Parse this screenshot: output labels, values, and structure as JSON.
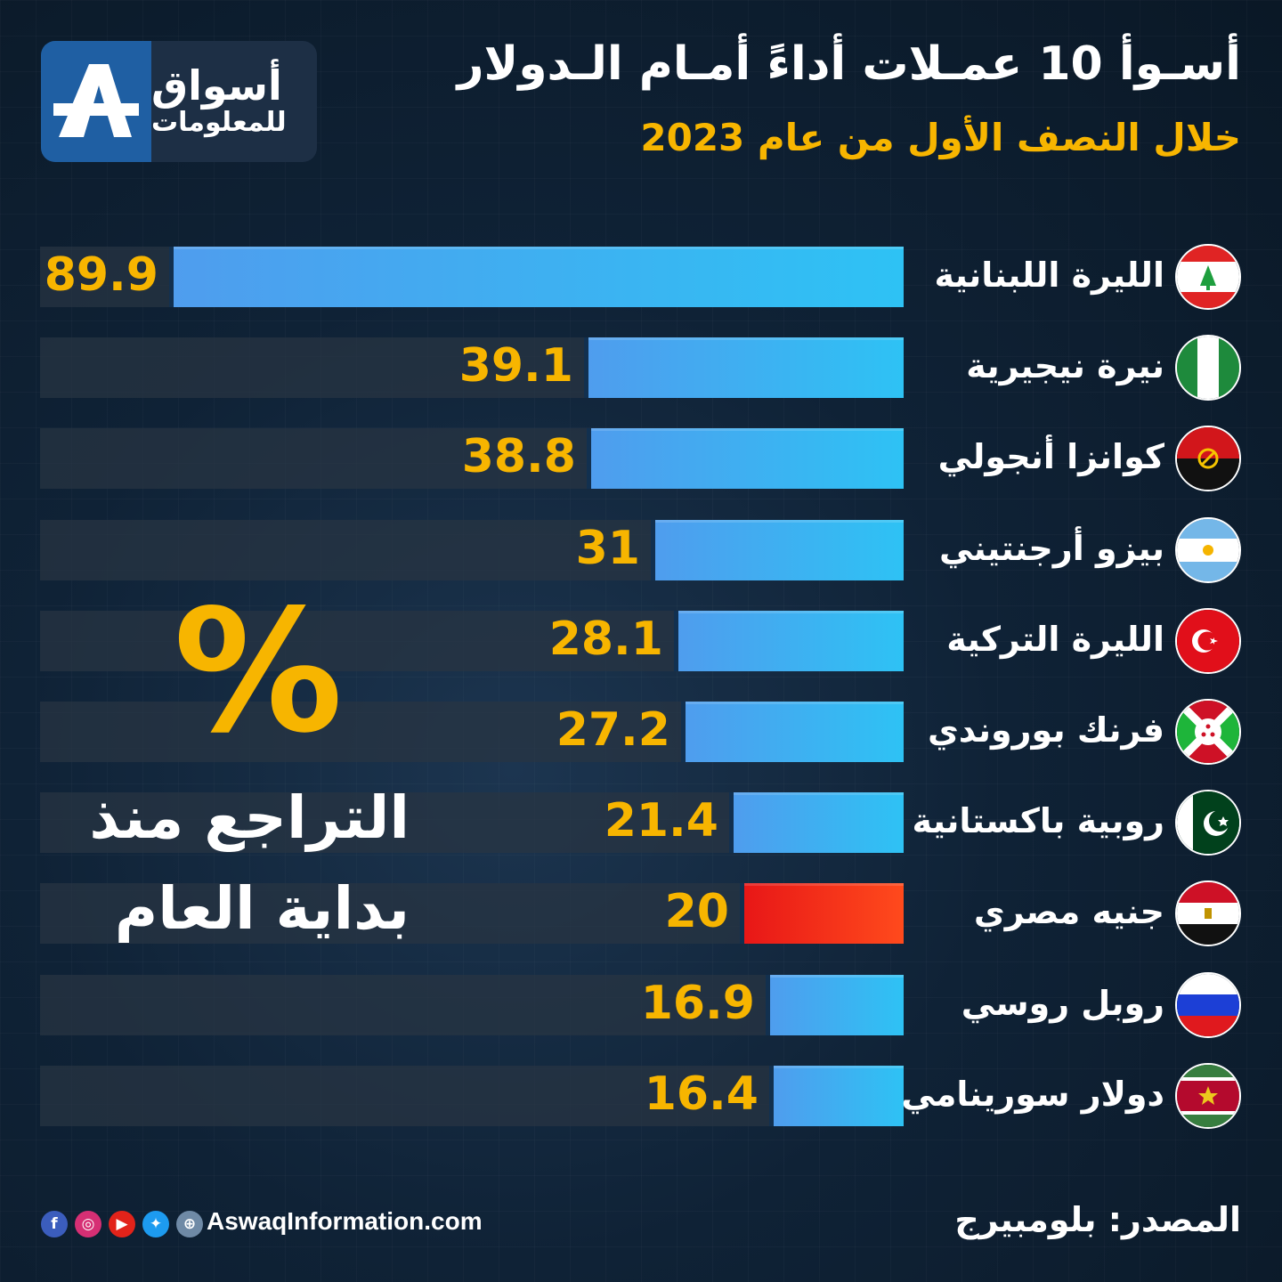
{
  "header": {
    "logo_name": "أسواق",
    "logo_sub": "للمعلومات",
    "title": "أسـوأ 10 عمـلات أداءً أمـام الـدولار",
    "subtitle": "خلال النصف الأول من عام 2023"
  },
  "chart_data": {
    "type": "bar",
    "orientation": "horizontal",
    "title": "أسـوأ 10 عمـلات أداءً أمـام الـدولار",
    "subtitle": "خلال النصف الأول من عام 2023",
    "categories": [
      "الليرة اللبنانية",
      "نيرة نيجيرية",
      "كوانزا أنجولي",
      "بيزو أرجنتيني",
      "الليرة التركية",
      "فرنك بوروندي",
      "روبية باكستانية",
      "جنيه مصري",
      "روبل روسي",
      "دولار سورينامي"
    ],
    "values": [
      89.9,
      39.1,
      38.8,
      31,
      28.1,
      27.2,
      21.4,
      20,
      16.9,
      16.4
    ],
    "value_labels": [
      "89.9",
      "39.1",
      "38.8",
      "31",
      "28.1",
      "27.2",
      "21.4",
      "20",
      "16.9",
      "16.4"
    ],
    "flags": [
      "lebanon-flag-icon",
      "nigeria-flag-icon",
      "angola-flag-icon",
      "argentina-flag-icon",
      "turkey-flag-icon",
      "burundi-flag-icon",
      "pakistan-flag-icon",
      "egypt-flag-icon",
      "russia-flag-icon",
      "suriname-flag-icon"
    ],
    "highlight_index": 7,
    "bar_color": "#3fb2f2",
    "highlight_color": "#f02a1a",
    "value_color": "#f7b500",
    "xlim": [
      0,
      89.9
    ]
  },
  "annotation": {
    "symbol": "%",
    "line1": "التراجع منذ",
    "line2": "بداية العام"
  },
  "footer": {
    "social_icons": [
      {
        "name": "facebook-icon",
        "glyph": "f",
        "color": "#3b5dbd"
      },
      {
        "name": "instagram-icon",
        "glyph": "◎",
        "color": "#d62f74"
      },
      {
        "name": "youtube-icon",
        "glyph": "▶",
        "color": "#e2231a"
      },
      {
        "name": "twitter-icon",
        "glyph": "✦",
        "color": "#1d9bf0"
      },
      {
        "name": "globe-icon",
        "glyph": "⊕",
        "color": "#6f8aa6"
      }
    ],
    "website": "AswaqInformation.com",
    "source": "المصدر: بلومبيرج"
  }
}
